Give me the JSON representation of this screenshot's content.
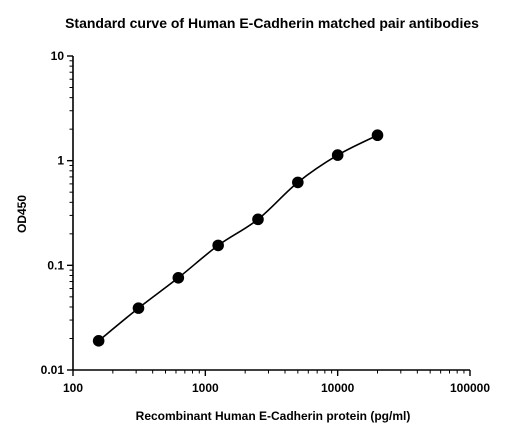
{
  "chart_data": {
    "type": "scatter",
    "title": "Standard curve of Human E-Cadherin matched pair antibodies",
    "xlabel": "Recombinant Human E-Cadherin protein (pg/ml)",
    "ylabel": "OD450",
    "x_scale": "log",
    "y_scale": "log",
    "xlim": [
      100,
      100000
    ],
    "ylim": [
      0.01,
      10
    ],
    "x_ticks": [
      {
        "value": 100,
        "label": "100"
      },
      {
        "value": 1000,
        "label": "1000"
      },
      {
        "value": 10000,
        "label": "10000"
      },
      {
        "value": 100000,
        "label": "100000"
      }
    ],
    "y_ticks": [
      {
        "value": 0.01,
        "label": "0.01"
      },
      {
        "value": 0.1,
        "label": "0.1"
      },
      {
        "value": 1,
        "label": "1"
      },
      {
        "value": 10,
        "label": "10"
      }
    ],
    "grid": false,
    "series": [
      {
        "x": [
          156.25,
          312.5,
          625,
          1250,
          2500,
          5000,
          10000,
          20000
        ],
        "y": [
          0.019,
          0.039,
          0.076,
          0.155,
          0.275,
          0.62,
          1.13,
          1.75
        ],
        "fit_line": true
      }
    ]
  }
}
